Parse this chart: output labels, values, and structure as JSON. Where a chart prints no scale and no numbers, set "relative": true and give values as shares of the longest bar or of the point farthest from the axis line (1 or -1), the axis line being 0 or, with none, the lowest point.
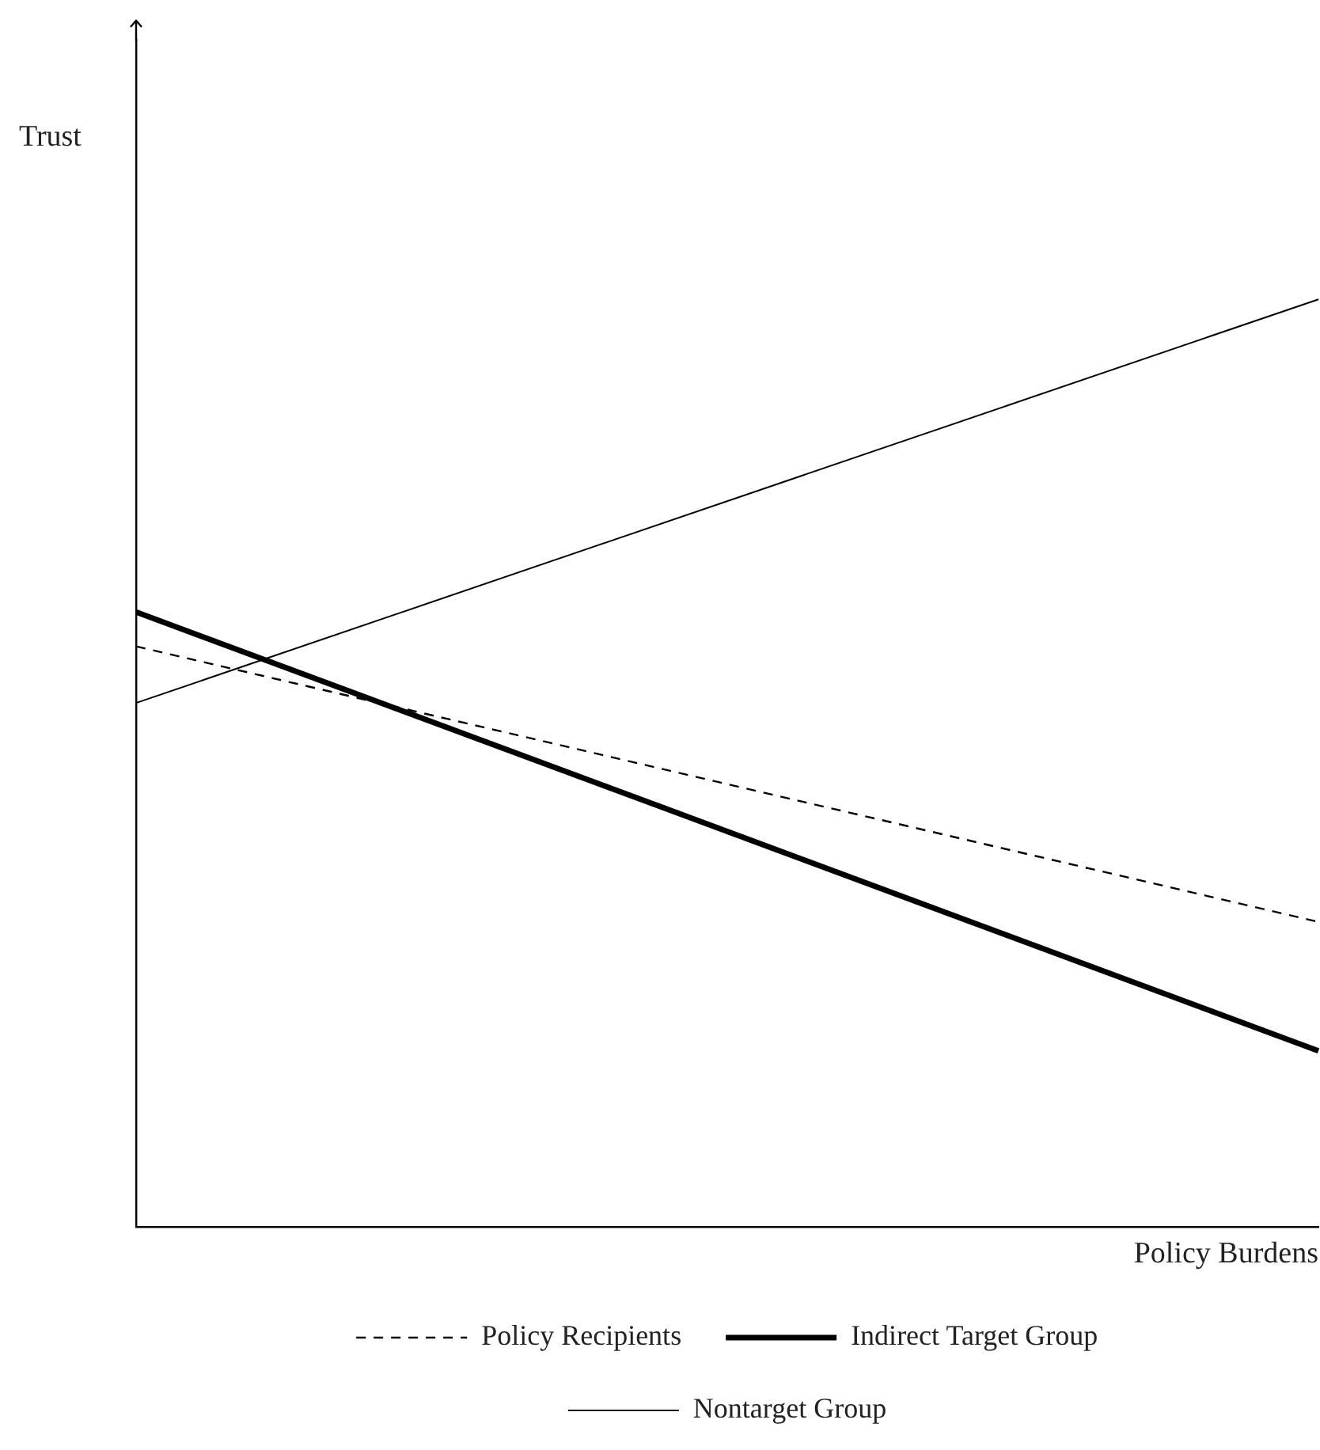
{
  "chart_data": {
    "type": "line",
    "relative": true,
    "xlabel": "Policy Burdens",
    "ylabel": "Trust",
    "categories": [
      null,
      null
    ],
    "legend": "bottom",
    "grid": false,
    "tick_labels": false,
    "marker": "none",
    "series": [
      {
        "name": "Policy Recipients",
        "color": "#000000",
        "line_style": "dashed",
        "values": [
          0.626,
          0.329
        ]
      },
      {
        "name": "Indirect Target Group",
        "color": "#000000",
        "line_style": "solid",
        "values": [
          0.663,
          0.19
        ]
      },
      {
        "name": "Nontarget Group",
        "color": "#000000",
        "line_style": "solid",
        "values": [
          0.565,
          1
        ]
      }
    ]
  }
}
